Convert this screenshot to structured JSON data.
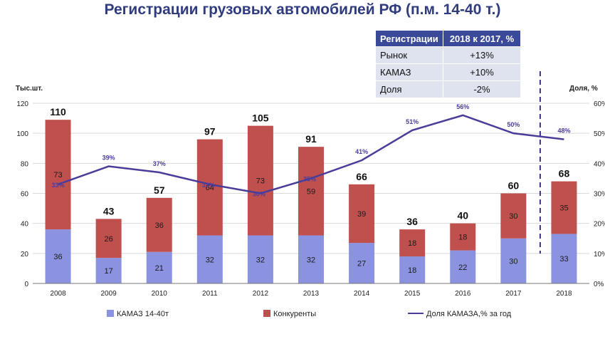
{
  "title": "Регистрации грузовых автомобилей РФ (п.м. 14-40 т.)",
  "summary_table": {
    "headers": [
      "Регистрации",
      "2018 к 2017, %"
    ],
    "rows": [
      [
        "Рынок",
        "+13%"
      ],
      [
        "КАМАЗ",
        "+10%"
      ],
      [
        "Доля",
        "-2%"
      ]
    ]
  },
  "chart_data": {
    "type": "bar",
    "stacked": true,
    "categories": [
      "2008",
      "2009",
      "2010",
      "2011",
      "2012",
      "2013",
      "2014",
      "2015",
      "2016",
      "2017",
      "2018"
    ],
    "series": [
      {
        "name": "КАМАЗ 14-40т",
        "values": [
          36,
          17,
          21,
          32,
          32,
          32,
          27,
          18,
          22,
          30,
          33
        ],
        "color": "#8b93e0"
      },
      {
        "name": "Конкуренты",
        "values": [
          73,
          26,
          36,
          64,
          73,
          59,
          39,
          18,
          18,
          30,
          35
        ],
        "color": "#c0504d"
      }
    ],
    "totals": [
      110,
      43,
      57,
      97,
      105,
      91,
      66,
      36,
      40,
      60,
      68
    ],
    "line_series": {
      "name": "Доля КАМАЗА,% за год",
      "values": [
        33,
        39,
        37,
        33,
        30,
        35,
        41,
        51,
        56,
        50,
        48
      ],
      "labels": [
        "33%",
        "39%",
        "37%",
        "33%",
        "30%",
        "35%",
        "41%",
        "51%",
        "56%",
        "50%",
        "48%"
      ],
      "color": "#4a3d9a",
      "axis": "right"
    },
    "ylabel": "Тыс.шт.",
    "y2label": "Доля, %",
    "ylim": [
      0,
      120
    ],
    "y_ticks": [
      "0",
      "20",
      "40",
      "60",
      "80",
      "100",
      "120"
    ],
    "y2lim": [
      0,
      60
    ],
    "y2_ticks": [
      "0%",
      "10%",
      "20%",
      "30%",
      "40%",
      "50%",
      "60%"
    ],
    "grid": true,
    "legend_position": "bottom",
    "annotation": "dashed vertical divider between 2017 and 2018"
  }
}
